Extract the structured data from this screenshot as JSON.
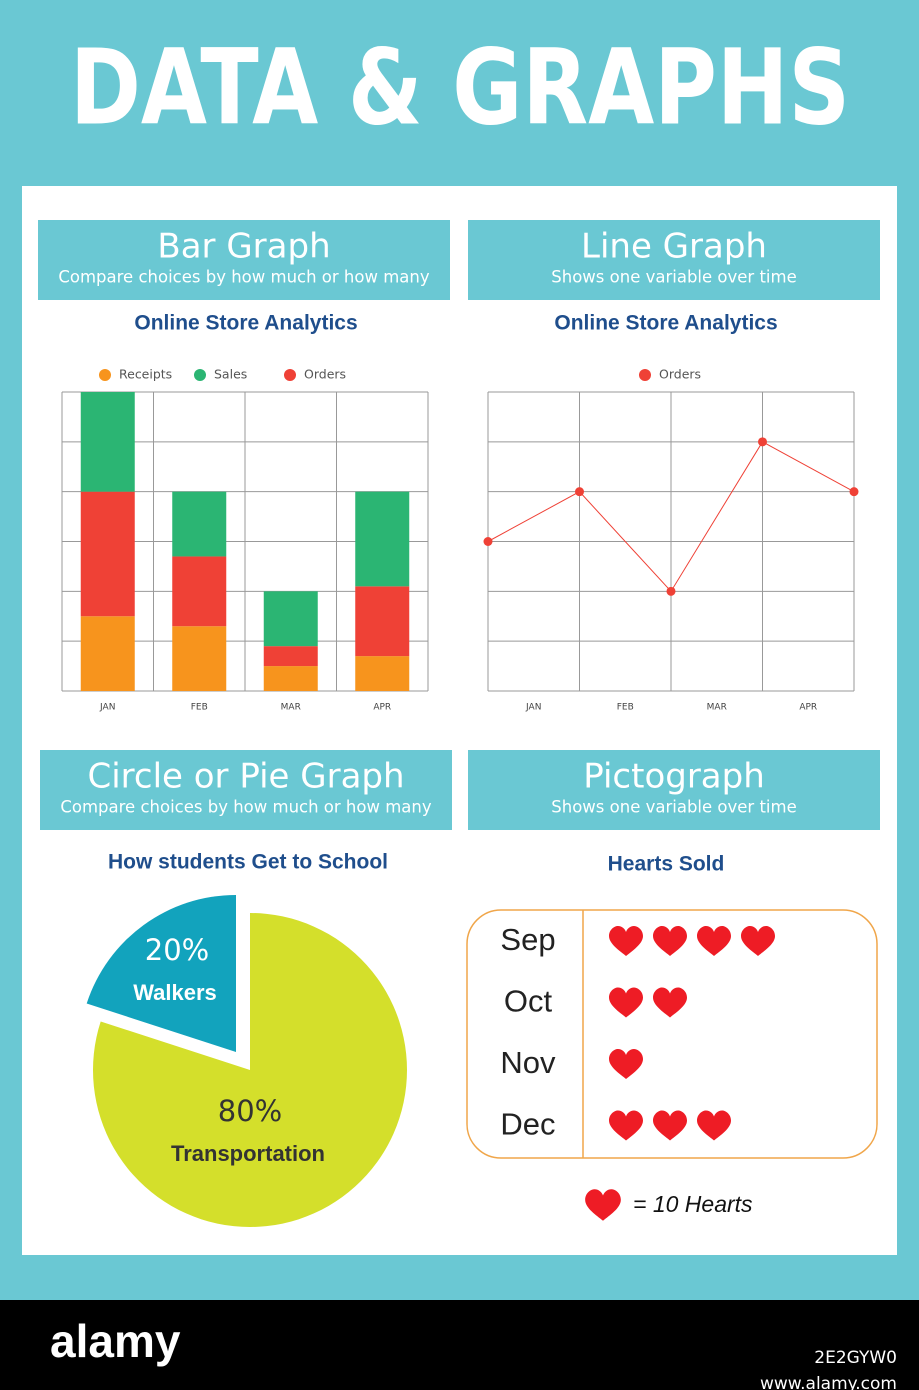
{
  "title": "DATA & GRAPHS",
  "sections": [
    {
      "heading": "Bar Graph",
      "subheading": "Compare choices by how much or how many"
    },
    {
      "heading": "Line Graph",
      "subheading": "Shows one variable over time"
    },
    {
      "heading": "Circle or Pie Graph",
      "subheading": "Compare choices by how much or how many"
    },
    {
      "heading": "Pictograph",
      "subheading": "Shows one variable over time"
    }
  ],
  "chart_data": [
    {
      "type": "bar",
      "title": "Online Store Analytics",
      "categories": [
        "JAN",
        "FEB",
        "MAR",
        "APR"
      ],
      "stacked": true,
      "series": [
        {
          "name": "Receipts",
          "color": "#f7941d",
          "values": [
            1.5,
            1.3,
            0.5,
            0.7
          ]
        },
        {
          "name": "Sales",
          "color": "#2bb573",
          "values": [
            2,
            1.3,
            1.1,
            1.9
          ]
        },
        {
          "name": "Orders",
          "color": "#ef4136",
          "values": [
            2.5,
            1.4,
            0.4,
            1.4
          ]
        }
      ],
      "ylim": [
        0,
        6
      ],
      "yticks": [
        0,
        1,
        2,
        3,
        4,
        5,
        6
      ],
      "grid": true
    },
    {
      "type": "line",
      "title": "Online Store Analytics",
      "x": [
        0,
        1,
        2,
        3,
        4
      ],
      "xlim": [
        0,
        4
      ],
      "xticks": [
        {
          "value": 0.5,
          "label": "JAN"
        },
        {
          "value": 1.5,
          "label": "FEB"
        },
        {
          "value": 2.5,
          "label": "MAR"
        },
        {
          "value": 3.5,
          "label": "APR"
        }
      ],
      "series": [
        {
          "name": "Orders",
          "color": "#ef4136",
          "values": [
            3,
            4,
            2,
            5,
            4
          ]
        }
      ],
      "ylim": [
        0,
        6
      ],
      "yticks": [
        0,
        1,
        2,
        3,
        4,
        5,
        6
      ],
      "grid": true
    },
    {
      "type": "pie",
      "title": "How students Get to School",
      "categories": [
        "Walkers",
        "Transportation"
      ],
      "values": [
        20,
        80
      ],
      "value_labels": [
        "20%",
        "80%"
      ],
      "colors": [
        "#12a3bd",
        "#d4df2b"
      ]
    },
    {
      "type": "pictograph",
      "title": "Hearts Sold",
      "categories": [
        "Sep",
        "Oct",
        "Nov",
        "Dec"
      ],
      "values": [
        4,
        2,
        1,
        3
      ],
      "color": "#ee1c25",
      "key_label": "= 10 Hearts"
    }
  ],
  "footer": {
    "brand": "alamy",
    "image_id": "2E2GYW0",
    "url": "www.alamy.com"
  }
}
